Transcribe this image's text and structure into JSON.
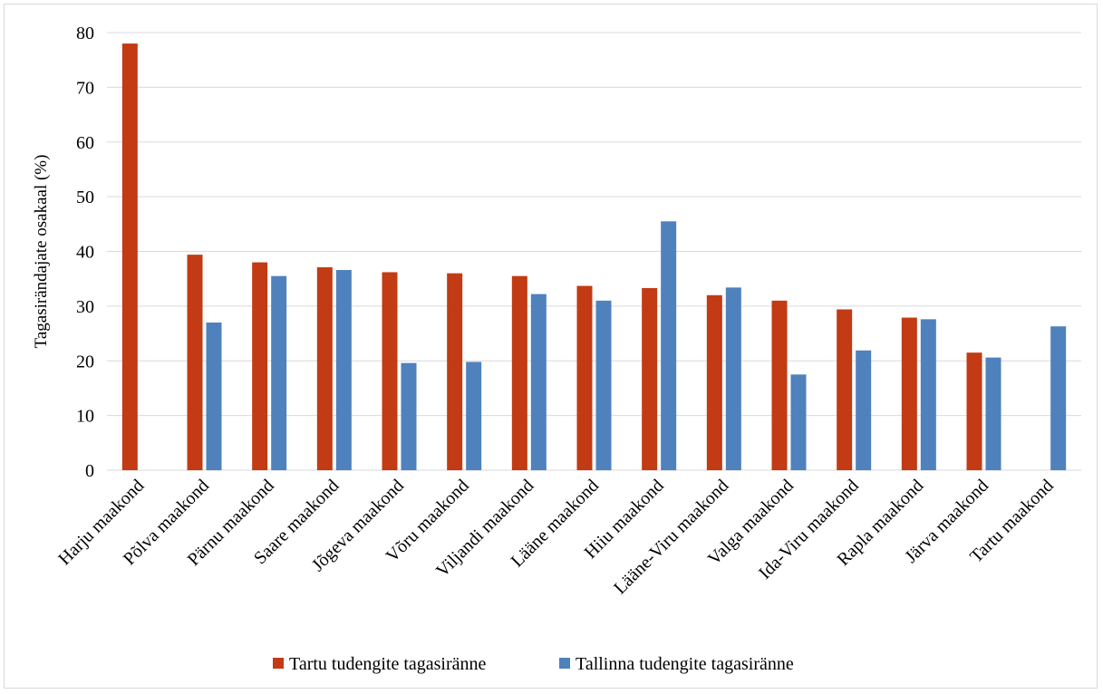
{
  "chart_data": {
    "type": "bar",
    "title": "",
    "xlabel": "",
    "ylabel": "Tagasirändajate osakaal (%)",
    "ylim": [
      0,
      80
    ],
    "yticks": [
      0,
      10,
      20,
      30,
      40,
      50,
      60,
      70,
      80
    ],
    "grid": true,
    "legend_position": "bottom",
    "categories": [
      "Harju maakond",
      "Põlva maakond",
      "Pärnu maakond",
      "Saare maakond",
      "Jõgeva maakond",
      "Võru maakond",
      "Viljandi maakond",
      "Lääne maakond",
      "Hiiu maakond",
      "Lääne-Viru maakond",
      "Valga maakond",
      "Ida-Viru maakond",
      "Rapla maakond",
      "Järva maakond",
      "Tartu maakond"
    ],
    "series": [
      {
        "name": "Tartu tudengite tagasiränne",
        "color": "#c23b14",
        "values": [
          78,
          39.4,
          38,
          37.1,
          36.2,
          36,
          35.5,
          33.7,
          33.3,
          32,
          31,
          29.4,
          27.9,
          21.5,
          null
        ]
      },
      {
        "name": "Tallinna tudengite tagasiränne",
        "color": "#4f81bd",
        "values": [
          null,
          27,
          35.5,
          36.6,
          19.6,
          19.8,
          32.2,
          31,
          45.5,
          33.4,
          17.5,
          21.9,
          27.6,
          20.6,
          26.3
        ]
      }
    ]
  }
}
